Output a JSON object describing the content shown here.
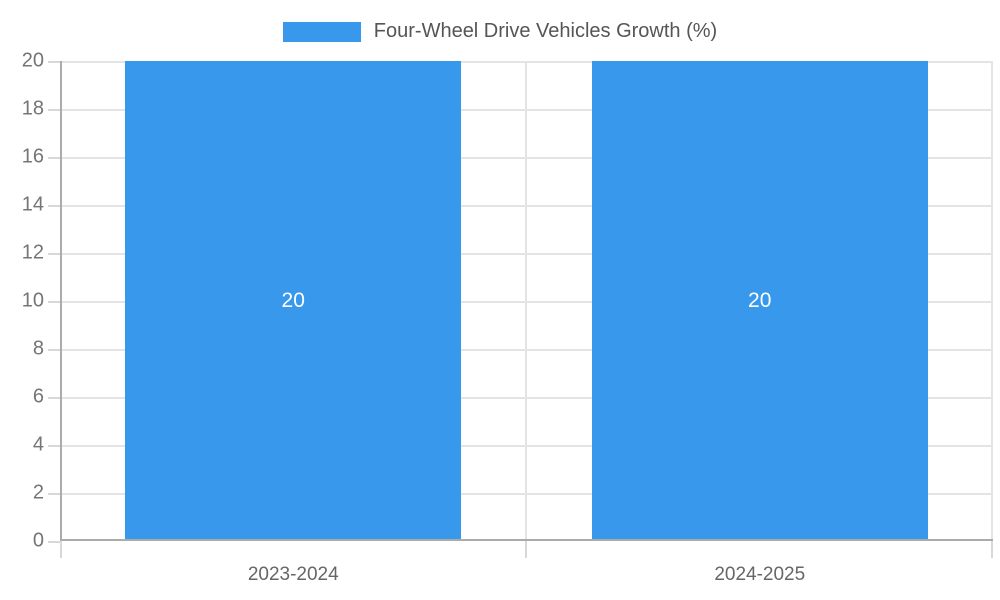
{
  "colors": {
    "bar": "#3899EC",
    "axis": "#ABABAB",
    "grid": "#E4E4E4",
    "tick": "#D8D8D8",
    "tick_label": "#757575",
    "x_label": "#666666",
    "legend_label": "#555555",
    "value_label": "#FFFFFF",
    "bg": "#FFFFFF"
  },
  "legend": {
    "label": "Four-Wheel Drive Vehicles Growth (%)",
    "swatch_color": "#3899EC"
  },
  "chart_data": {
    "type": "bar",
    "title": "",
    "legend": "Four-Wheel Drive Vehicles Growth (%)",
    "legend_position": "top",
    "categories": [
      "2023-2024",
      "2024-2025"
    ],
    "values": [
      20,
      20
    ],
    "value_labels": [
      "20",
      "20"
    ],
    "xlabel": "",
    "ylabel": "",
    "ylim": [
      0,
      20
    ],
    "ytick_step": 2,
    "yticks": [
      0,
      2,
      4,
      6,
      8,
      10,
      12,
      14,
      16,
      18,
      20
    ],
    "grid": true,
    "bar_color": "#3899EC",
    "bar_width_fraction": 0.72
  }
}
